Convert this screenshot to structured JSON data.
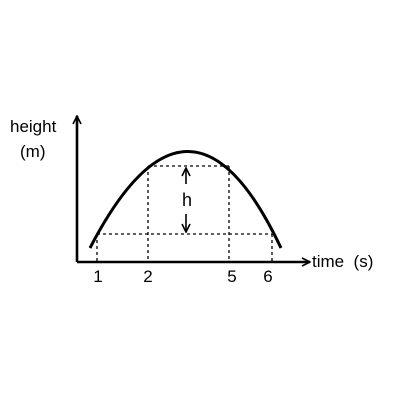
{
  "diagram": {
    "y_axis_label_line1": "height",
    "y_axis_label_line2": "(m)",
    "x_axis_label": "time  (s)",
    "gap_label": "h",
    "tick_labels": [
      "1",
      "2",
      "5",
      "6"
    ],
    "colors": {
      "line": "#000000",
      "background": "#ffffff"
    }
  }
}
